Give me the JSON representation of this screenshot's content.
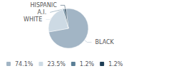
{
  "chart_data": {
    "type": "pie",
    "categories": [
      "BLACK",
      "WHITE",
      "A.I.",
      "HISPANIC"
    ],
    "values": [
      74.1,
      23.5,
      1.2,
      1.2
    ],
    "value_labels": [
      "74.1%",
      "23.5%",
      "1.2%",
      "1.2%"
    ],
    "colors": [
      "#a2b5c5",
      "#cddae4",
      "#5b7f96",
      "#1e3d54"
    ],
    "legend": "lower left"
  }
}
